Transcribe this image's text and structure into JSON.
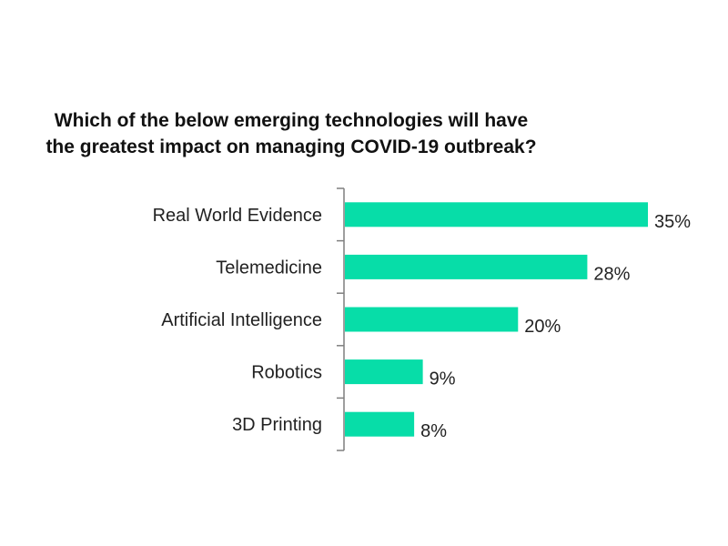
{
  "chart_data": {
    "type": "bar",
    "orientation": "horizontal",
    "title_lines": [
      "Which of the below emerging technologies will have",
      "the greatest impact on managing COVID-19 outbreak?"
    ],
    "categories": [
      "Real World Evidence",
      "Telemedicine",
      "Artificial Intelligence",
      "Robotics",
      "3D Printing"
    ],
    "values": [
      35,
      28,
      20,
      9,
      8
    ],
    "value_labels": [
      "35%",
      "28%",
      "20%",
      "9%",
      "8%"
    ],
    "xlabel": "",
    "ylabel": "",
    "xlim": [
      0,
      35
    ],
    "grid": false,
    "bar_color": "#07DDA8"
  }
}
